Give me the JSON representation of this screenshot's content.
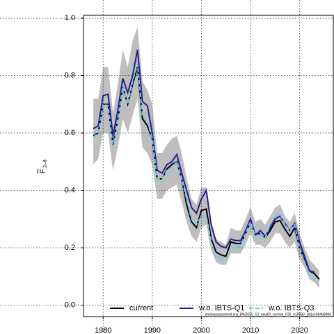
{
  "chart_data": {
    "type": "line",
    "ylabel": "F",
    "ylabel_sub": "2–6",
    "footnote": "stockassessment.org_BW2025_12_newID_normal_F26_n19683_git1cc464b8066",
    "x": [
      1978,
      1979,
      1980,
      1981,
      1982,
      1983,
      1984,
      1985,
      1986,
      1987,
      1988,
      1989,
      1990,
      1991,
      1992,
      1993,
      1994,
      1995,
      1996,
      1997,
      1998,
      1999,
      2000,
      2001,
      2002,
      2003,
      2004,
      2005,
      2006,
      2007,
      2008,
      2009,
      2010,
      2011,
      2012,
      2013,
      2014,
      2015,
      2016,
      2017,
      2018,
      2019,
      2020,
      2021,
      2022,
      2023,
      2024
    ],
    "band": {
      "color": "#bebebe",
      "lower": [
        0.49,
        0.51,
        0.6,
        0.6,
        0.47,
        0.55,
        0.65,
        0.6,
        0.66,
        0.72,
        0.55,
        0.53,
        0.49,
        0.37,
        0.37,
        0.4,
        0.41,
        0.42,
        0.36,
        0.29,
        0.24,
        0.22,
        0.27,
        0.28,
        0.19,
        0.15,
        0.14,
        0.14,
        0.18,
        0.18,
        0.18,
        0.21,
        0.25,
        0.21,
        0.21,
        0.2,
        0.22,
        0.25,
        0.25,
        0.22,
        0.2,
        0.22,
        0.16,
        0.13,
        0.09,
        0.08,
        0.06
      ],
      "upper": [
        0.72,
        0.72,
        0.83,
        0.83,
        0.67,
        0.77,
        0.89,
        0.83,
        0.92,
        0.97,
        0.78,
        0.75,
        0.7,
        0.53,
        0.53,
        0.56,
        0.58,
        0.59,
        0.53,
        0.44,
        0.37,
        0.35,
        0.41,
        0.41,
        0.29,
        0.23,
        0.22,
        0.21,
        0.27,
        0.26,
        0.26,
        0.3,
        0.34,
        0.29,
        0.3,
        0.28,
        0.31,
        0.34,
        0.35,
        0.31,
        0.29,
        0.32,
        0.25,
        0.2,
        0.16,
        0.14,
        0.12
      ]
    },
    "series": [
      {
        "name": "current",
        "color": "#000000",
        "dashed": false,
        "values": [
          0.59,
          0.6,
          0.7,
          0.7,
          0.56,
          0.65,
          0.76,
          0.7,
          0.77,
          0.83,
          0.65,
          0.625,
          0.58,
          0.44,
          0.44,
          0.475,
          0.49,
          0.5,
          0.44,
          0.35,
          0.29,
          0.27,
          0.33,
          0.335,
          0.23,
          0.185,
          0.175,
          0.17,
          0.22,
          0.215,
          0.215,
          0.25,
          0.29,
          0.245,
          0.25,
          0.235,
          0.26,
          0.29,
          0.295,
          0.265,
          0.24,
          0.27,
          0.2,
          0.16,
          0.12,
          0.11,
          0.09
        ]
      },
      {
        "name": "w.o. IBTS-Q1",
        "color": "#2b1d8c",
        "dashed": false,
        "values": [
          0.615,
          0.625,
          0.73,
          0.735,
          0.59,
          0.68,
          0.79,
          0.74,
          0.8,
          0.89,
          0.71,
          0.695,
          0.6,
          0.47,
          0.46,
          0.49,
          0.5,
          0.525,
          0.46,
          0.4,
          0.34,
          0.32,
          0.37,
          0.4,
          0.28,
          0.22,
          0.205,
          0.2,
          0.23,
          0.225,
          0.225,
          0.26,
          0.3,
          0.245,
          0.26,
          0.24,
          0.27,
          0.3,
          0.31,
          0.285,
          0.26,
          0.285,
          0.22,
          0.17,
          0.12,
          0.115,
          null
        ]
      },
      {
        "name": "w.o. IBTS-Q3",
        "color": "#6cc9ef",
        "dashed": true,
        "values": [
          0.585,
          0.6,
          0.7,
          0.695,
          0.55,
          0.65,
          0.76,
          0.7,
          0.78,
          0.84,
          0.66,
          0.64,
          0.58,
          0.44,
          0.44,
          0.47,
          0.48,
          0.5,
          0.44,
          0.37,
          0.3,
          0.28,
          0.31,
          0.31,
          0.22,
          0.17,
          0.165,
          0.16,
          0.2,
          0.2,
          0.21,
          0.25,
          0.29,
          0.24,
          0.25,
          0.235,
          0.28,
          0.31,
          0.32,
          0.28,
          0.26,
          0.28,
          0.2,
          0.15,
          0.11,
          0.09,
          0.085
        ]
      }
    ],
    "xlim": [
      1976,
      2027
    ],
    "xticks": [
      1980,
      1990,
      2000,
      2010,
      2020
    ],
    "ylim": [
      -0.04,
      1.01
    ],
    "yticks": [
      {
        "value": 0,
        "label": "0.0"
      },
      {
        "value": 0.2,
        "label": "0.2"
      },
      {
        "value": 0.4,
        "label": "0.4"
      },
      {
        "value": 0.6,
        "label": "0.6"
      },
      {
        "value": 0.8,
        "label": "0.8"
      },
      {
        "value": 1,
        "label": "1.0"
      }
    ],
    "grid": true,
    "legend": "bottom"
  }
}
